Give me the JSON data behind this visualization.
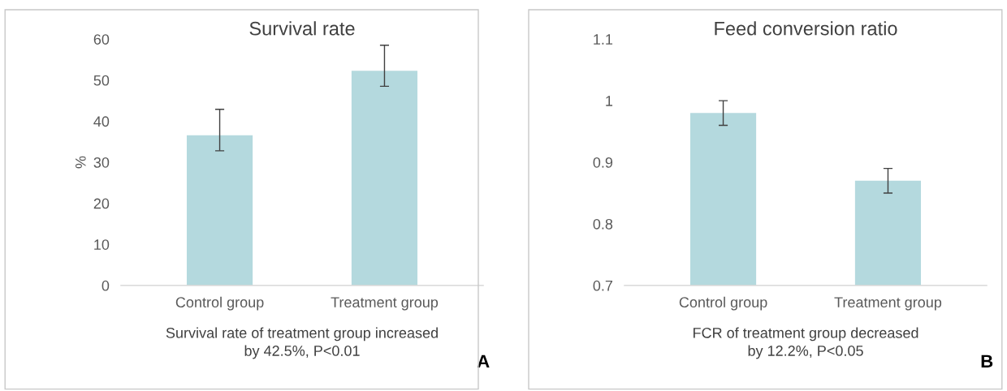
{
  "chart_data": [
    {
      "type": "bar",
      "title": "Survival rate",
      "ylabel": "%",
      "categories": [
        "Control group",
        "Treatment group"
      ],
      "values": [
        36.6,
        52.3
      ],
      "errors": [
        [
          32.8,
          42.9
        ],
        [
          48.5,
          58.5
        ]
      ],
      "color": "#b4d9de",
      "ylim": [
        0,
        60
      ],
      "yticks": [
        0,
        10,
        20,
        30,
        40,
        50,
        60
      ],
      "grid": false,
      "annotations": [
        "Survival rate of treatment group increased\nby 42.5%, P<0.01",
        "A"
      ]
    },
    {
      "type": "bar",
      "title": "Feed conversion ratio",
      "categories": [
        "Control group",
        "Treatment group"
      ],
      "values": [
        0.98,
        0.87
      ],
      "errors": [
        [
          0.96,
          1.0
        ],
        [
          0.85,
          0.89
        ]
      ],
      "color": "#b4d9de",
      "ylim": [
        0.7,
        1.1
      ],
      "yticks": [
        0.7,
        0.8,
        0.9,
        {
          "value": 1.0,
          "label": "1"
        },
        1.1
      ],
      "grid": false,
      "annotations": [
        "FCR of treatment group decreased\nby 12.2%, P<0.05",
        "B"
      ]
    }
  ]
}
